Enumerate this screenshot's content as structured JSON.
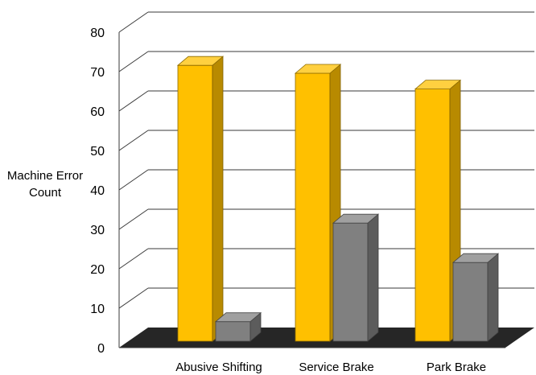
{
  "chart_data": {
    "type": "bar",
    "categories": [
      "Abusive Shifting",
      "Service Brake",
      "Park Brake"
    ],
    "series": [
      {
        "values": [
          72,
          70,
          66
        ],
        "color": "#FFC000"
      },
      {
        "values": [
          7,
          32,
          22
        ],
        "color": "#808080"
      }
    ],
    "ylabel": [
      "Machine Error",
      "Count"
    ],
    "ylim": [
      0,
      80
    ],
    "yticks": [
      0,
      10,
      20,
      30,
      40,
      50,
      60,
      70,
      80
    ],
    "grid": true,
    "legend": "none",
    "floor_color": "#262626"
  }
}
